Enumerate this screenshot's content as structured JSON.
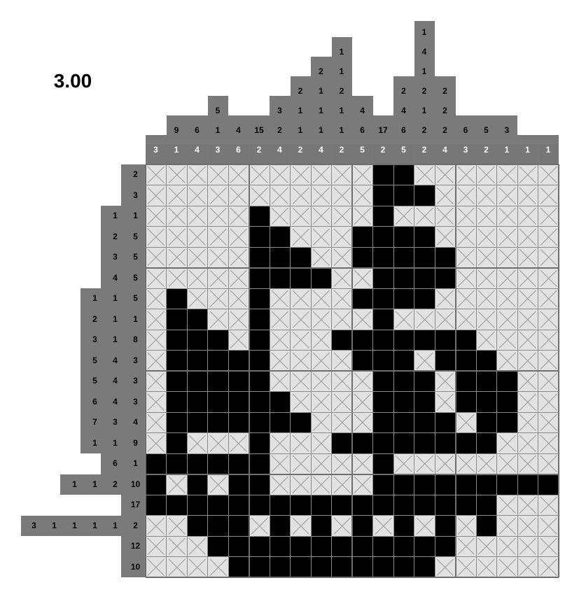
{
  "score": "3.00",
  "puzzle": {
    "columns": 20,
    "rows": 20,
    "column_clues": [
      [
        "3"
      ],
      [
        "9",
        "1"
      ],
      [
        "6",
        "4"
      ],
      [
        "5",
        "1",
        "3"
      ],
      [
        "4",
        "6"
      ],
      [
        "15",
        "2"
      ],
      [
        "3",
        "2",
        "4"
      ],
      [
        "2",
        "1",
        "1",
        "2"
      ],
      [
        "2",
        "1",
        "1",
        "1",
        "4"
      ],
      [
        "1",
        "1",
        "2",
        "1",
        "1",
        "2"
      ],
      [
        "4",
        "6",
        "5"
      ],
      [
        "17",
        "2"
      ],
      [
        "2",
        "4",
        "6",
        "5"
      ],
      [
        "1",
        "4",
        "1",
        "2",
        "1",
        "2",
        "2"
      ],
      [
        "2",
        "2",
        "2",
        "4"
      ],
      [
        "6",
        "3"
      ],
      [
        "5",
        "2"
      ],
      [
        "3",
        "1"
      ],
      [
        "1"
      ],
      [
        "1"
      ]
    ],
    "row_clues": [
      [
        "2"
      ],
      [
        "3"
      ],
      [
        "1",
        "1"
      ],
      [
        "2",
        "5"
      ],
      [
        "3",
        "5"
      ],
      [
        "4",
        "5"
      ],
      [
        "1",
        "1",
        "5"
      ],
      [
        "2",
        "1",
        "1"
      ],
      [
        "3",
        "1",
        "8"
      ],
      [
        "5",
        "4",
        "3"
      ],
      [
        "5",
        "4",
        "3"
      ],
      [
        "6",
        "4",
        "3"
      ],
      [
        "7",
        "3",
        "4"
      ],
      [
        "1",
        "1",
        "9"
      ],
      [
        "6",
        "1"
      ],
      [
        "1",
        "1",
        "2",
        "10"
      ],
      [
        "17"
      ],
      [
        "3",
        "1",
        "1",
        "1",
        "1",
        "2"
      ],
      [
        "12"
      ],
      [
        "10"
      ]
    ],
    "cell_legend": {
      "1": "filled",
      "0": "crossed",
      "2": "empty"
    },
    "grid": [
      "00000000000110000000",
      "00000000000111000000",
      "00000100000100000000",
      "00000110001111000000",
      "00000111001111100000",
      "00000111100111100000",
      "01000100001111000000",
      "01100100000100000000",
      "01110100011111110000",
      "01111100001110111000",
      "01111100000111011100",
      "01111110000111011100",
      "01111111000111101100",
      "01000100011111111000",
      "11111100000100000000",
      "10101100000111111111",
      "11111111111111111000",
      "00111010101010101000",
      "00011111111111100000",
      "00001111111111000000"
    ],
    "colors": {
      "filled": "#000000",
      "crossed_bg": "#e2e2e2",
      "clue_bg": "#7a7a7a",
      "last_clue_bg": "#777777",
      "grid_line": "#8a8a8a"
    }
  }
}
